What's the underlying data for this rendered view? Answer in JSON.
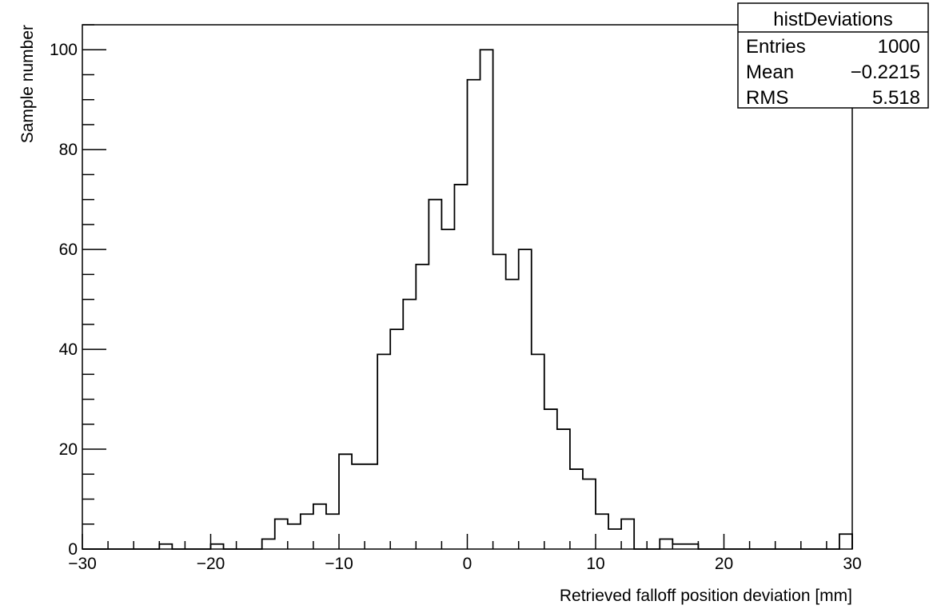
{
  "chart_data": {
    "type": "histogram",
    "title": "",
    "xlabel": "Retrieved falloff position deviation [mm]",
    "ylabel": "Sample number",
    "xlim": [
      -30,
      30
    ],
    "ylim": [
      0,
      105
    ],
    "bin_width": 1,
    "bin_start": -30,
    "x_ticks": [
      -30,
      -20,
      -10,
      0,
      10,
      20,
      30
    ],
    "x_tick_labels": [
      "−30",
      "−20",
      "−10",
      "0",
      "10",
      "20",
      "30"
    ],
    "y_ticks": [
      0,
      20,
      40,
      60,
      80,
      100
    ],
    "y_tick_labels": [
      "0",
      "20",
      "40",
      "60",
      "80",
      "100"
    ],
    "values": [
      0,
      0,
      0,
      0,
      0,
      0,
      1,
      0,
      0,
      0,
      1,
      0,
      0,
      0,
      2,
      6,
      5,
      7,
      9,
      7,
      19,
      17,
      17,
      39,
      44,
      50,
      57,
      70,
      64,
      73,
      94,
      100,
      59,
      54,
      60,
      39,
      28,
      24,
      16,
      14,
      7,
      4,
      6,
      0,
      0,
      2,
      1,
      1,
      0,
      0,
      0,
      0,
      0,
      0,
      0,
      0,
      0,
      0,
      0,
      3
    ],
    "stats_box": {
      "title": "histDeviations",
      "rows": [
        {
          "label": "Entries",
          "value": "1000"
        },
        {
          "label": "Mean",
          "value": "−0.2215"
        },
        {
          "label": "RMS",
          "value": "5.518"
        }
      ]
    },
    "colors": {
      "line": "#000000",
      "background": "#ffffff"
    }
  }
}
